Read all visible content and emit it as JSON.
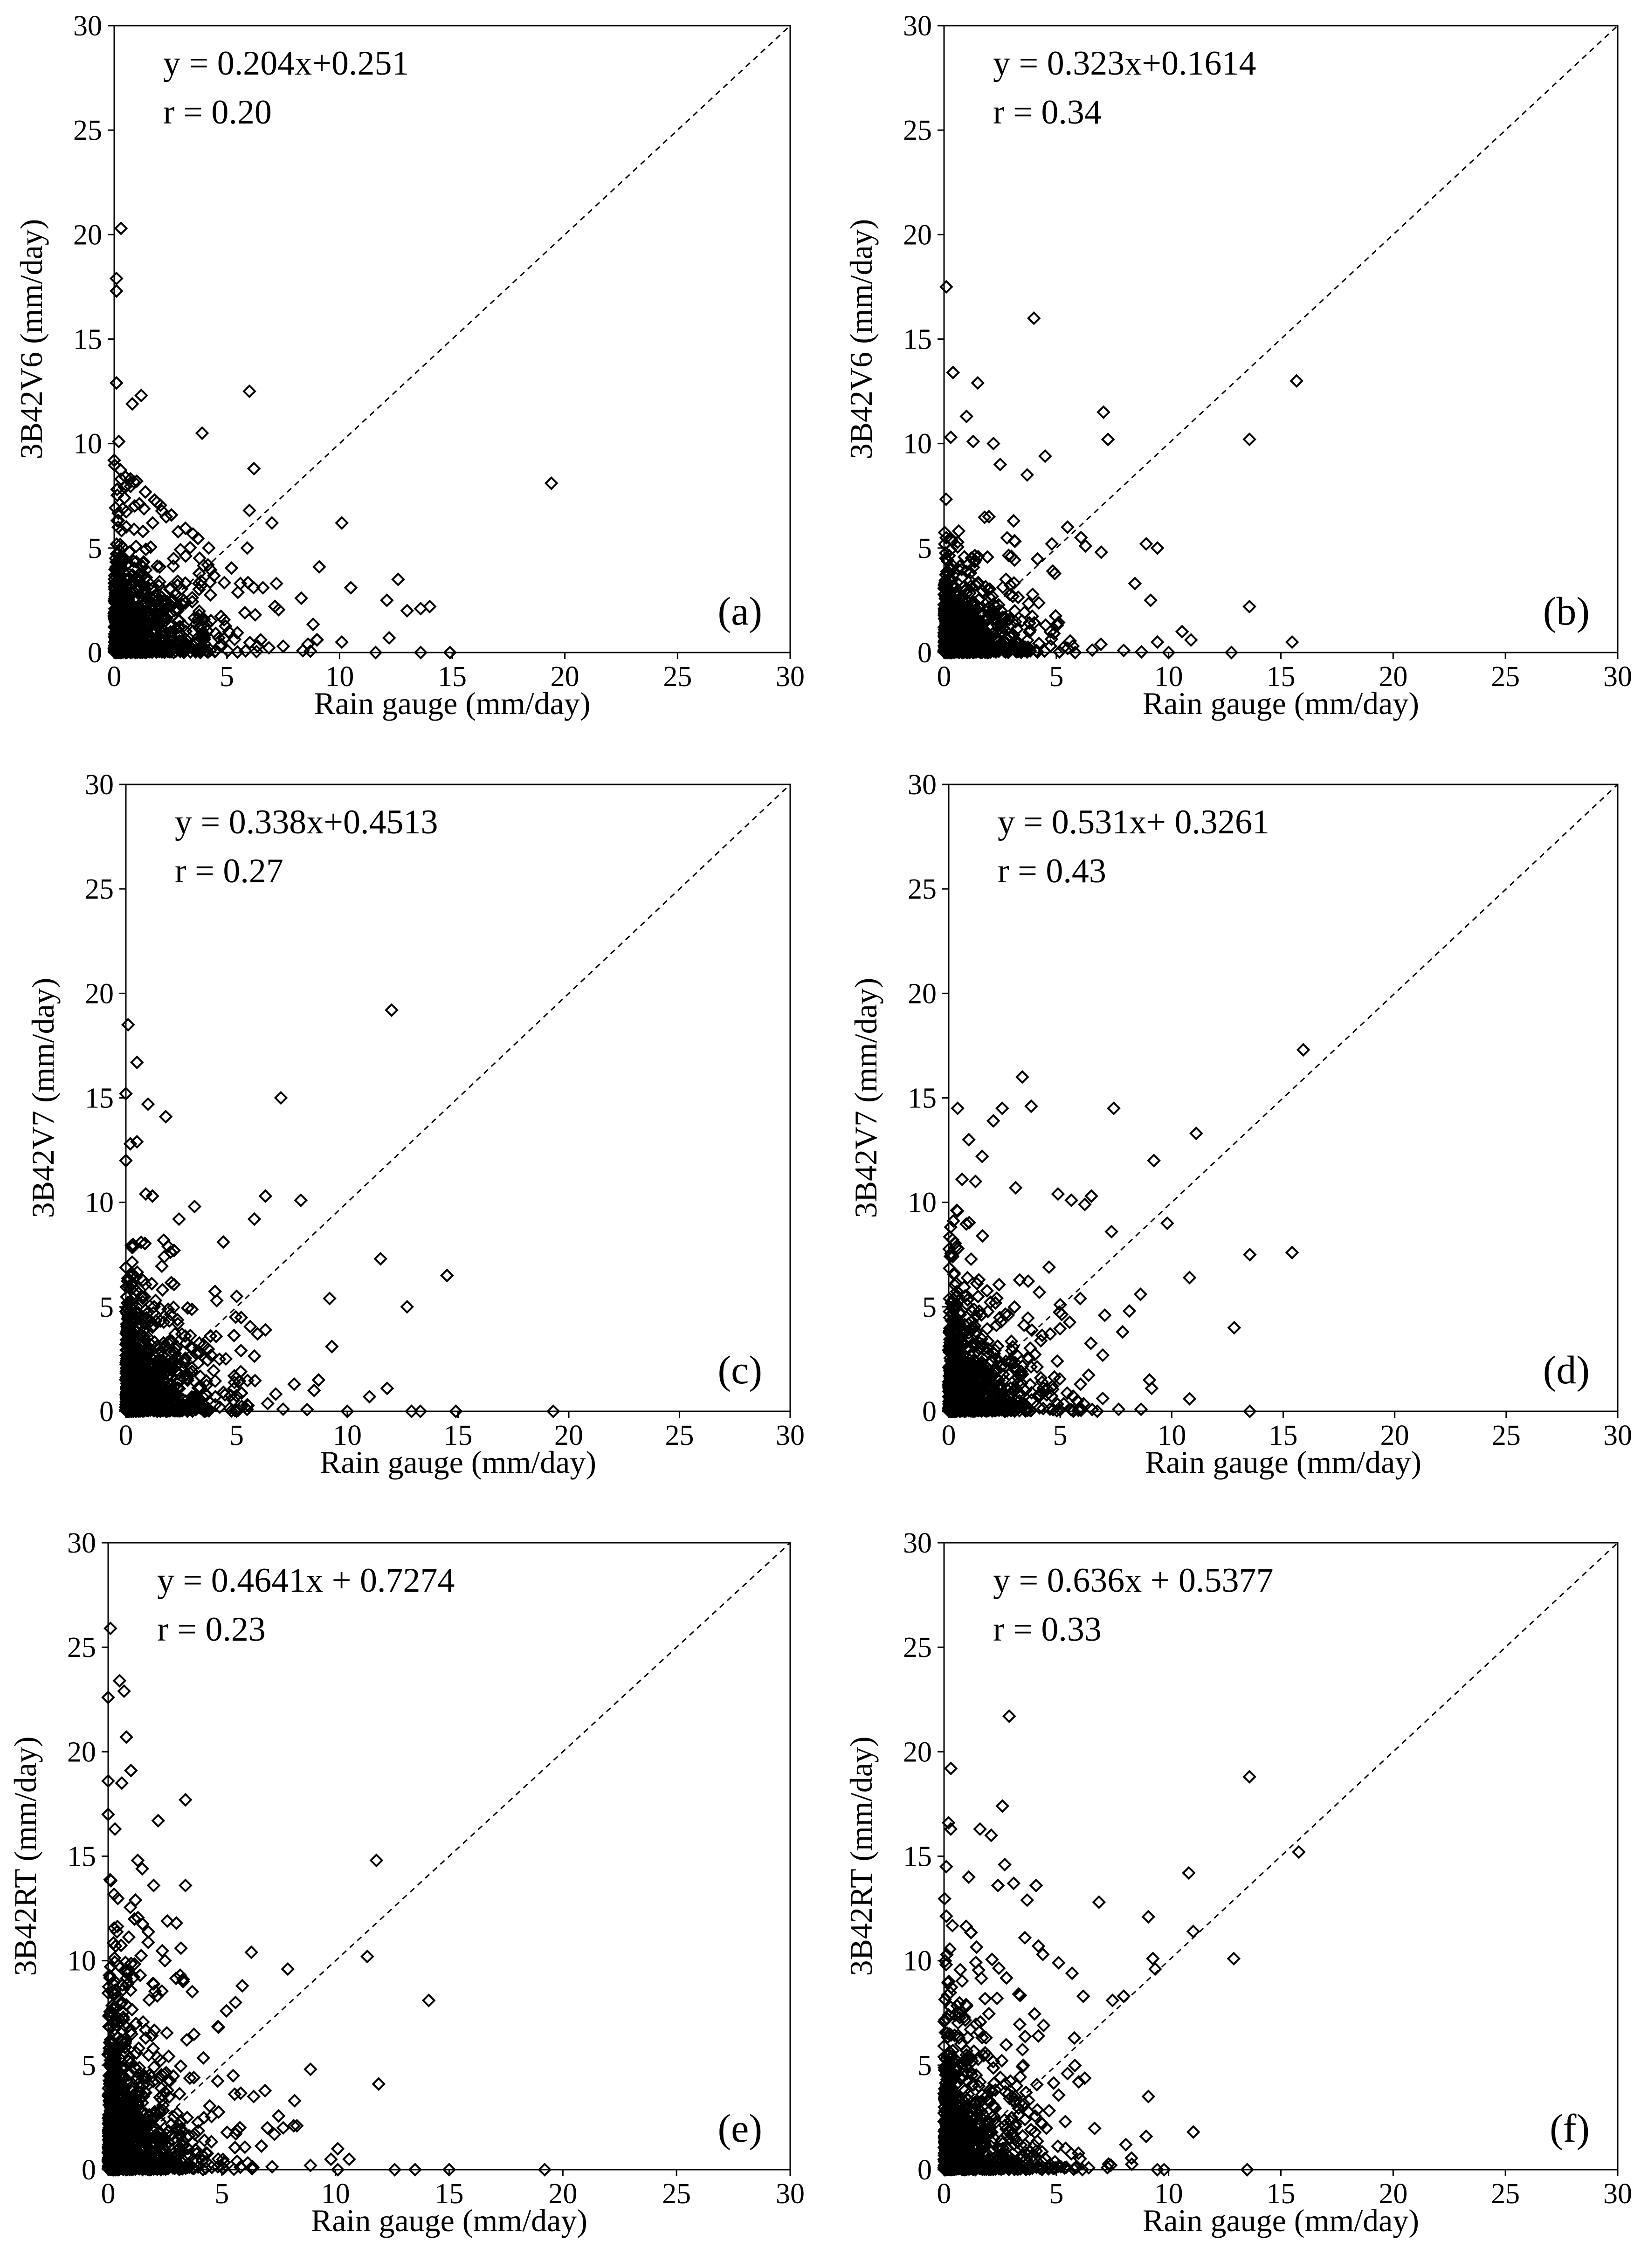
{
  "colors": {
    "marker": "#000000",
    "axis": "#000000",
    "background": "#ffffff"
  },
  "chart_data": [
    {
      "id": "a",
      "type": "scatter",
      "panel_label": "(a)",
      "xlabel": "Rain gauge (mm/day)",
      "ylabel": "3B42V6 (mm/day)",
      "equation": "y = 0.204x+0.251",
      "r_label": "r = 0.20",
      "xlim": [
        0,
        30
      ],
      "ylim": [
        0,
        30
      ],
      "xticks": [
        0,
        5,
        10,
        15,
        20,
        25,
        30
      ],
      "yticks": [
        0,
        5,
        10,
        15,
        20,
        25,
        30
      ],
      "reference_line": "1:1 (y = x), dashed",
      "point_fill": "hollow diamonds",
      "cluster": {
        "count": 1100,
        "x_spread": 3.2,
        "y_spread": 4.2,
        "x_max": 9,
        "y_max": 9,
        "seed": 11
      },
      "outliers": [
        [
          0.3,
          20.3
        ],
        [
          0.1,
          17.9
        ],
        [
          0.1,
          17.3
        ],
        [
          0.1,
          12.9
        ],
        [
          1.2,
          12.3
        ],
        [
          0.8,
          11.9
        ],
        [
          0.2,
          10.1
        ],
        [
          0.3,
          8.3
        ],
        [
          0.5,
          8.4
        ],
        [
          1,
          8.2
        ],
        [
          0,
          9.2
        ],
        [
          6,
          12.5
        ],
        [
          3.9,
          10.5
        ],
        [
          6.2,
          8.8
        ],
        [
          7,
          6.2
        ],
        [
          10.1,
          6.2
        ],
        [
          6,
          6.8
        ],
        [
          9.1,
          4.1
        ],
        [
          10.5,
          3.1
        ],
        [
          12.6,
          3.5
        ],
        [
          12.1,
          2.5
        ],
        [
          13,
          2
        ],
        [
          13.6,
          2.1
        ],
        [
          14,
          2.2
        ],
        [
          12.2,
          0.7
        ],
        [
          13.6,
          0
        ],
        [
          14.9,
          0
        ],
        [
          11.6,
          0
        ],
        [
          10.1,
          0.5
        ],
        [
          8.6,
          0.4
        ],
        [
          9,
          0.6
        ],
        [
          7.5,
          0.3
        ],
        [
          6.6,
          3.1
        ],
        [
          7.2,
          3.3
        ],
        [
          8.3,
          2.6
        ],
        [
          5.9,
          5
        ],
        [
          5.6,
          3.3
        ],
        [
          19.4,
          8.1
        ]
      ]
    },
    {
      "id": "b",
      "type": "scatter",
      "panel_label": "(b)",
      "xlabel": "Rain gauge (mm/day)",
      "ylabel": "3B42V6 (mm/day)",
      "equation": "y = 0.323x+0.1614",
      "r_label": "r = 0.34",
      "xlim": [
        0,
        30
      ],
      "ylim": [
        0,
        30
      ],
      "xticks": [
        0,
        5,
        10,
        15,
        20,
        25,
        30
      ],
      "yticks": [
        0,
        5,
        10,
        15,
        20,
        25,
        30
      ],
      "reference_line": "1:1 (y = x), dashed",
      "point_fill": "hollow diamonds",
      "cluster": {
        "count": 1000,
        "x_spread": 3.0,
        "y_spread": 3.3,
        "x_max": 9,
        "y_max": 8,
        "seed": 23
      },
      "outliers": [
        [
          0.1,
          17.5
        ],
        [
          0.4,
          13.4
        ],
        [
          1.5,
          12.9
        ],
        [
          4,
          16
        ],
        [
          1,
          11.3
        ],
        [
          0.3,
          10.3
        ],
        [
          1.3,
          10.1
        ],
        [
          2.2,
          10
        ],
        [
          2.5,
          9
        ],
        [
          4.5,
          9.4
        ],
        [
          3.7,
          8.5
        ],
        [
          7.1,
          11.5
        ],
        [
          7.3,
          10.2
        ],
        [
          13.6,
          10.2
        ],
        [
          15.7,
          13
        ],
        [
          5.5,
          6
        ],
        [
          6.1,
          5.5
        ],
        [
          7,
          4.8
        ],
        [
          9,
          5.2
        ],
        [
          9.5,
          5
        ],
        [
          8.5,
          3.3
        ],
        [
          9.2,
          2.5
        ],
        [
          13.6,
          2.2
        ],
        [
          10.6,
          1
        ],
        [
          11,
          0.6
        ],
        [
          12.8,
          0
        ],
        [
          15.5,
          0.5
        ],
        [
          9.5,
          0.5
        ],
        [
          8,
          0.1
        ],
        [
          10,
          0
        ],
        [
          6.3,
          5.1
        ],
        [
          4.8,
          5.2
        ],
        [
          3,
          4.6
        ],
        [
          3.1,
          6.3
        ],
        [
          2,
          6.5
        ]
      ]
    },
    {
      "id": "c",
      "type": "scatter",
      "panel_label": "(c)",
      "xlabel": "Rain gauge (mm/day)",
      "ylabel": "3B42V7 (mm/day)",
      "equation": "y = 0.338x+0.4513",
      "r_label": "r = 0.27",
      "xlim": [
        0,
        30
      ],
      "ylim": [
        0,
        30
      ],
      "xticks": [
        0,
        5,
        10,
        15,
        20,
        25,
        30
      ],
      "yticks": [
        0,
        5,
        10,
        15,
        20,
        25,
        30
      ],
      "reference_line": "1:1 (y = x), dashed",
      "point_fill": "hollow diamonds",
      "cluster": {
        "count": 1150,
        "x_spread": 3.3,
        "y_spread": 4.8,
        "x_max": 9,
        "y_max": 10,
        "seed": 37
      },
      "outliers": [
        [
          0.1,
          18.5
        ],
        [
          0.5,
          16.7
        ],
        [
          1,
          14.7
        ],
        [
          0,
          15.2
        ],
        [
          0.2,
          12.8
        ],
        [
          0.5,
          12.9
        ],
        [
          0,
          12
        ],
        [
          1.8,
          14.1
        ],
        [
          0.9,
          10.4
        ],
        [
          1.2,
          10.3
        ],
        [
          2.4,
          9.2
        ],
        [
          3.1,
          9.8
        ],
        [
          5.8,
          9.2
        ],
        [
          6.3,
          10.3
        ],
        [
          7.9,
          10.1
        ],
        [
          7,
          15
        ],
        [
          12,
          19.2
        ],
        [
          11.5,
          7.3
        ],
        [
          14.5,
          6.5
        ],
        [
          12.7,
          5
        ],
        [
          9.2,
          5.4
        ],
        [
          9.3,
          3.1
        ],
        [
          8.5,
          1
        ],
        [
          7.6,
          1.3
        ],
        [
          11.8,
          1.1
        ],
        [
          11,
          0.7
        ],
        [
          10,
          0
        ],
        [
          12.9,
          0
        ],
        [
          13.3,
          0
        ],
        [
          14.9,
          0
        ],
        [
          19.3,
          0
        ],
        [
          4.4,
          8.1
        ],
        [
          5,
          5.5
        ],
        [
          6.3,
          3.9
        ],
        [
          4.1,
          5.3
        ]
      ]
    },
    {
      "id": "d",
      "type": "scatter",
      "panel_label": "(d)",
      "xlabel": "Rain gauge (mm/day)",
      "ylabel": "3B42V7 (mm/day)",
      "equation": "y = 0.531x+ 0.3261",
      "r_label": "r = 0.43",
      "xlim": [
        0,
        30
      ],
      "ylim": [
        0,
        30
      ],
      "xticks": [
        0,
        5,
        10,
        15,
        20,
        25,
        30
      ],
      "yticks": [
        0,
        5,
        10,
        15,
        20,
        25,
        30
      ],
      "reference_line": "1:1 (y = x), dashed",
      "point_fill": "hollow diamonds",
      "cluster": {
        "count": 1050,
        "x_spread": 3.2,
        "y_spread": 4.6,
        "x_max": 9,
        "y_max": 10,
        "seed": 41
      },
      "outliers": [
        [
          0.4,
          14.5
        ],
        [
          0.9,
          13
        ],
        [
          1.5,
          12.2
        ],
        [
          3.3,
          16
        ],
        [
          2.4,
          14.5
        ],
        [
          3.7,
          14.6
        ],
        [
          2,
          13.9
        ],
        [
          0.6,
          11.1
        ],
        [
          1.2,
          11
        ],
        [
          3,
          10.7
        ],
        [
          7.4,
          14.5
        ],
        [
          11.1,
          13.3
        ],
        [
          15.9,
          17.3
        ],
        [
          9.2,
          12
        ],
        [
          4.9,
          10.4
        ],
        [
          5.5,
          10.1
        ],
        [
          6.4,
          10.3
        ],
        [
          6.1,
          9.9
        ],
        [
          9.8,
          9
        ],
        [
          7.3,
          8.6
        ],
        [
          8.6,
          5.6
        ],
        [
          8.1,
          4.8
        ],
        [
          13.5,
          7.5
        ],
        [
          15.4,
          7.6
        ],
        [
          10.8,
          6.4
        ],
        [
          12.8,
          4
        ],
        [
          9,
          1.5
        ],
        [
          9.1,
          1.1
        ],
        [
          10.8,
          0.6
        ],
        [
          13.5,
          0
        ],
        [
          7.8,
          3.8
        ],
        [
          5.9,
          5.4
        ],
        [
          5,
          5.1
        ],
        [
          4.5,
          6.9
        ],
        [
          7,
          4.6
        ]
      ]
    },
    {
      "id": "e",
      "type": "scatter",
      "panel_label": "(e)",
      "xlabel": "Rain gauge (mm/day)",
      "ylabel": "3B42RT (mm/day)",
      "equation": "y = 0.4641x + 0.7274",
      "r_label": "r = 0.23",
      "xlim": [
        0,
        30
      ],
      "ylim": [
        0,
        30
      ],
      "xticks": [
        0,
        5,
        10,
        15,
        20,
        25,
        30
      ],
      "yticks": [
        0,
        5,
        10,
        15,
        20,
        25,
        30
      ],
      "reference_line": "1:1 (y = x), dashed",
      "point_fill": "hollow diamonds",
      "cluster": {
        "count": 1250,
        "x_spread": 3.2,
        "y_spread": 7.0,
        "x_max": 9,
        "y_max": 14,
        "seed": 53
      },
      "outliers": [
        [
          0.1,
          25.9
        ],
        [
          0.5,
          23.4
        ],
        [
          0.7,
          22.9
        ],
        [
          0,
          22.6
        ],
        [
          0.8,
          20.7
        ],
        [
          1,
          19.1
        ],
        [
          0,
          18.6
        ],
        [
          0.6,
          18.5
        ],
        [
          0,
          17
        ],
        [
          0.3,
          16.3
        ],
        [
          3.4,
          17.7
        ],
        [
          2.2,
          16.7
        ],
        [
          1.3,
          14.8
        ],
        [
          1.5,
          14.4
        ],
        [
          3.4,
          13.6
        ],
        [
          2,
          13.6
        ],
        [
          2.6,
          11.9
        ],
        [
          3,
          11.8
        ],
        [
          3.2,
          10.6
        ],
        [
          2.5,
          10
        ],
        [
          1.2,
          12.9
        ],
        [
          6.3,
          10.4
        ],
        [
          7.9,
          9.6
        ],
        [
          11.8,
          14.8
        ],
        [
          11.4,
          10.2
        ],
        [
          14.1,
          8.1
        ],
        [
          11.9,
          4.1
        ],
        [
          8.9,
          4.8
        ],
        [
          6.4,
          3.5
        ],
        [
          5.2,
          7.6
        ],
        [
          5.6,
          8
        ],
        [
          5.9,
          8.8
        ],
        [
          5.5,
          4.5
        ],
        [
          7,
          2
        ],
        [
          7.7,
          2
        ],
        [
          8.2,
          3.3
        ],
        [
          9.8,
          0.5
        ],
        [
          10.1,
          1
        ],
        [
          10.6,
          0.5
        ],
        [
          12.6,
          0
        ],
        [
          13.5,
          0
        ],
        [
          15,
          0
        ],
        [
          19.2,
          0
        ],
        [
          10.1,
          0
        ],
        [
          8.9,
          0.2
        ],
        [
          3.3,
          9
        ]
      ]
    },
    {
      "id": "f",
      "type": "scatter",
      "panel_label": "(f)",
      "xlabel": "Rain gauge (mm/day)",
      "ylabel": "3B42RT (mm/day)",
      "equation": "y = 0.636x + 0.5377",
      "r_label": "r = 0.33",
      "xlim": [
        0,
        30
      ],
      "ylim": [
        0,
        30
      ],
      "xticks": [
        0,
        5,
        10,
        15,
        20,
        25,
        30
      ],
      "yticks": [
        0,
        5,
        10,
        15,
        20,
        25,
        30
      ],
      "reference_line": "1:1 (y = x), dashed",
      "point_fill": "hollow diamonds",
      "cluster": {
        "count": 1150,
        "x_spread": 3.2,
        "y_spread": 6.2,
        "x_max": 9,
        "y_max": 13,
        "seed": 67
      },
      "outliers": [
        [
          0.3,
          19.2
        ],
        [
          0.2,
          16.6
        ],
        [
          0.3,
          16.3
        ],
        [
          1.6,
          16.3
        ],
        [
          2.1,
          16
        ],
        [
          2.6,
          17.4
        ],
        [
          2.9,
          21.7
        ],
        [
          0.1,
          14.5
        ],
        [
          1.1,
          14
        ],
        [
          2.7,
          14.6
        ],
        [
          2.4,
          13.6
        ],
        [
          3.1,
          13.7
        ],
        [
          4.1,
          13.6
        ],
        [
          3.7,
          12.9
        ],
        [
          4.2,
          10.7
        ],
        [
          4.4,
          10.3
        ],
        [
          5.1,
          9.9
        ],
        [
          3.6,
          11.1
        ],
        [
          5.7,
          9.4
        ],
        [
          6.9,
          12.8
        ],
        [
          9.1,
          12.1
        ],
        [
          9.3,
          10.1
        ],
        [
          9.4,
          9.6
        ],
        [
          10.9,
          14.2
        ],
        [
          11.1,
          11.4
        ],
        [
          12.9,
          10.1
        ],
        [
          13.6,
          18.8
        ],
        [
          15.8,
          15.2
        ],
        [
          7.5,
          8.1
        ],
        [
          8,
          8.3
        ],
        [
          6.2,
          8.3
        ],
        [
          5.8,
          6.3
        ],
        [
          5.5,
          4.6
        ],
        [
          6,
          4.2
        ],
        [
          9.1,
          3.5
        ],
        [
          11.1,
          1.8
        ],
        [
          13.5,
          0
        ],
        [
          9.5,
          0
        ],
        [
          9.8,
          0
        ],
        [
          5.4,
          2.3
        ],
        [
          4.2,
          6.4
        ]
      ]
    }
  ]
}
